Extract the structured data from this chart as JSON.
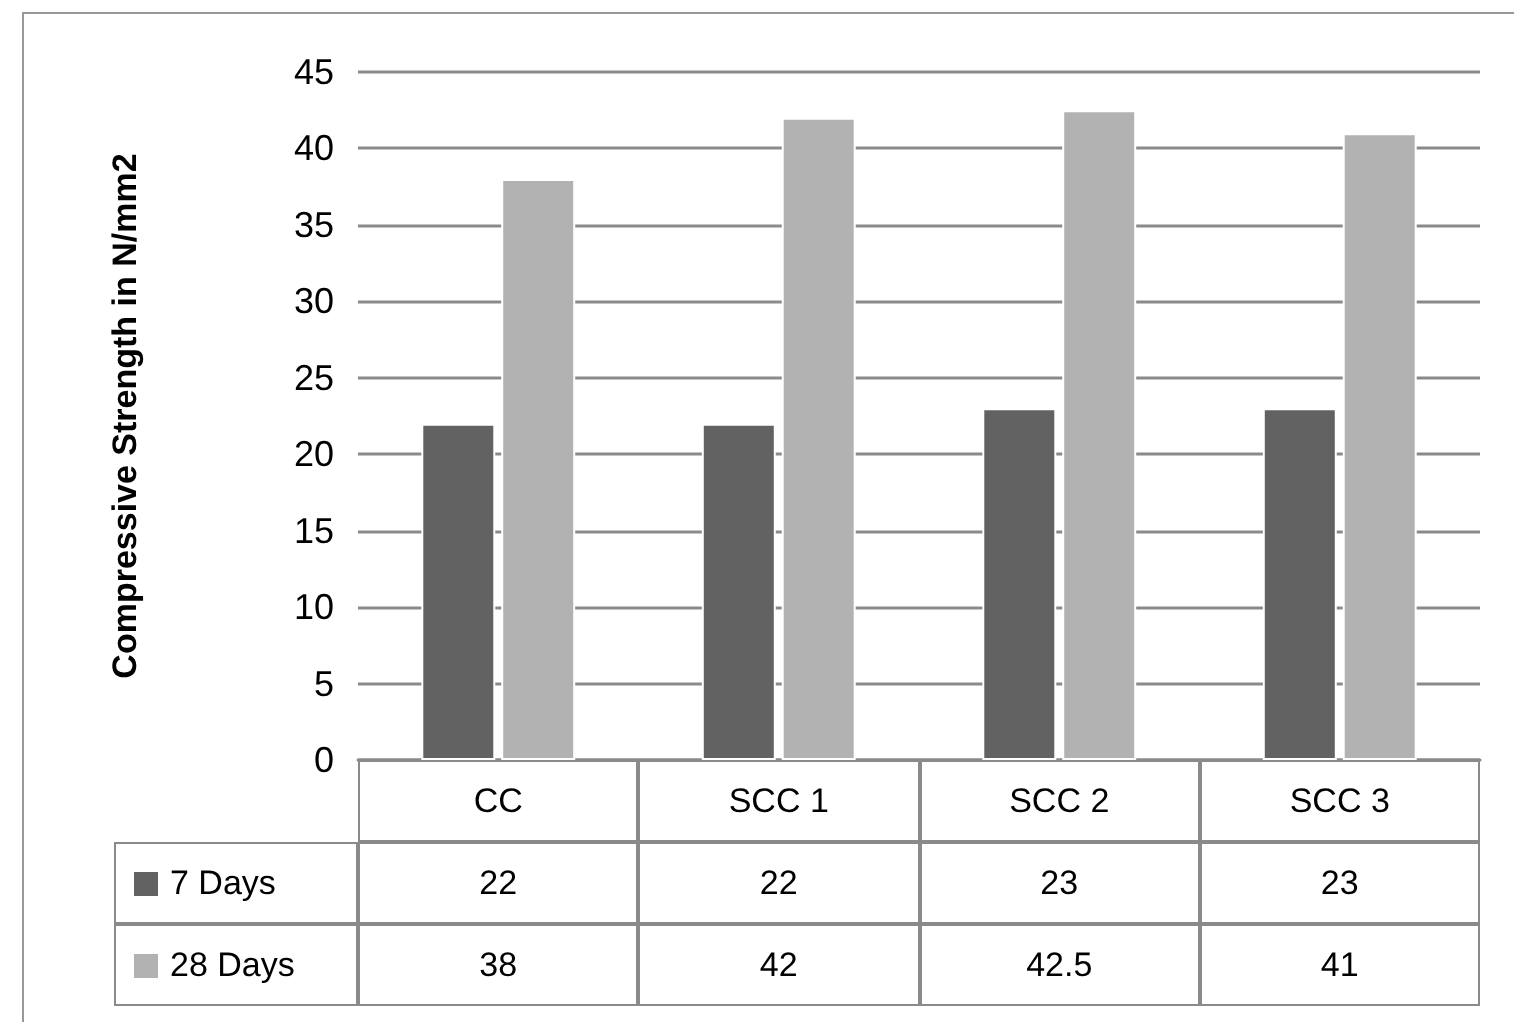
{
  "chart_data": {
    "type": "bar",
    "ylabel": "Compressive Strength in N/mm2",
    "categories": [
      "CC",
      "SCC 1",
      "SCC 2",
      "SCC 3"
    ],
    "series": [
      {
        "name": "7 Days",
        "color": "#626262",
        "values": [
          22,
          22,
          23,
          23
        ]
      },
      {
        "name": "28 Days",
        "color": "#b2b2b2",
        "values": [
          38,
          42,
          42.5,
          41
        ]
      }
    ],
    "ylim": [
      0,
      45
    ],
    "yticks": [
      0,
      5,
      10,
      15,
      20,
      25,
      30,
      35,
      40,
      45
    ],
    "grid": "y",
    "legend": "bottom left",
    "data_labels": true
  }
}
